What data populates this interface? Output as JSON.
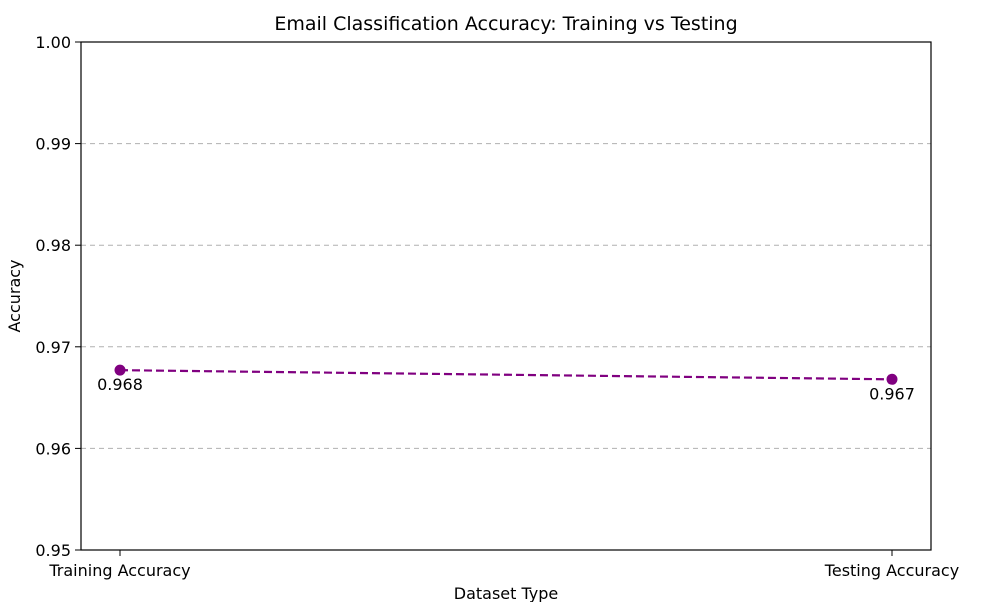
{
  "chart_data": {
    "type": "line",
    "title": "Email Classification Accuracy: Training vs Testing",
    "xlabel": "Dataset Type",
    "ylabel": "Accuracy",
    "categories": [
      "Training Accuracy",
      "Testing Accuracy"
    ],
    "values": [
      0.9677,
      0.9668
    ],
    "data_labels": [
      "0.968",
      "0.967"
    ],
    "ylim": [
      0.95,
      1.0
    ],
    "yticks": [
      0.95,
      0.96,
      0.97,
      0.98,
      0.99,
      1.0
    ],
    "ytick_labels": [
      "0.95",
      "0.96",
      "0.97",
      "0.98",
      "0.99",
      "1.00"
    ],
    "grid": "y-dashed",
    "line_style": "dashed",
    "marker": "circle",
    "color": "#800080"
  }
}
